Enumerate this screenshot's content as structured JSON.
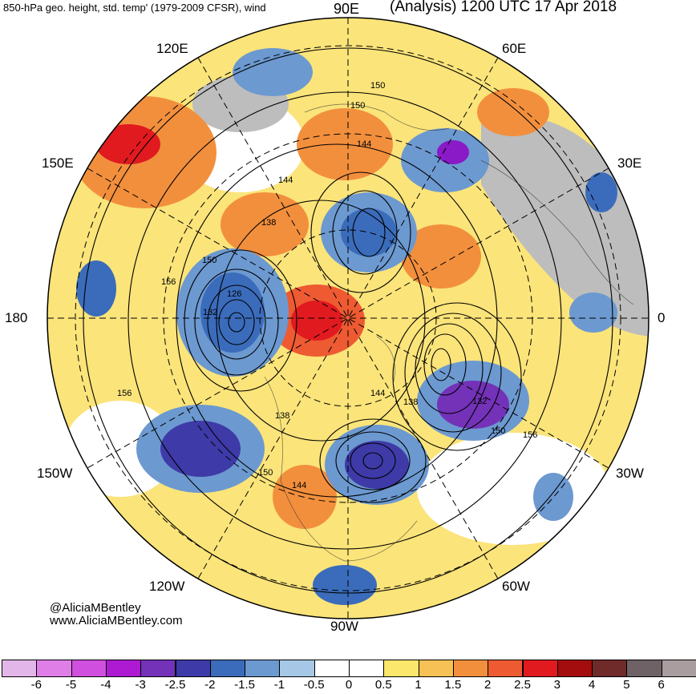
{
  "header": {
    "left_title": "850-hPa geo. height, std. temp' (1979-2009 CFSR), wind",
    "right_title": "(Analysis) 1200 UTC 17 Apr 2018"
  },
  "map": {
    "projection": "north-polar-stereographic",
    "longitude_labels": {
      "lon_90e": "90E",
      "lon_120e": "120E",
      "lon_60e": "60E",
      "lon_150e": "150E",
      "lon_30e": "30E",
      "lon_180": "180",
      "lon_0": "0",
      "lon_150w": "150W",
      "lon_30w": "30W",
      "lon_120w": "120W",
      "lon_60w": "60W",
      "lon_90w": "90W"
    },
    "contour_labels": [
      "150",
      "150",
      "144",
      "144",
      "138",
      "150",
      "156",
      "126",
      "132",
      "156",
      "138",
      "150",
      "144",
      "144",
      "138",
      "132",
      "150",
      "156"
    ],
    "anomaly_colors": {
      "strong_warm": "#d7191c",
      "warm": "#f46d43",
      "mild_warm": "#fdae61",
      "slight_warm": "#fee08b",
      "slight_cold": "#abd9e9",
      "cold": "#4575b4",
      "strong_cold": "#3f2f9f",
      "purple": "#8a19c7",
      "land_gray": "#bdbdbd"
    }
  },
  "credit": {
    "twitter": "@AliciaMBentley",
    "website": "www.AliciaMBentley.com"
  },
  "colorbar": {
    "labels": [
      "-6",
      "-5",
      "-4",
      "-3",
      "-2.5",
      "-2",
      "-1.5",
      "-1",
      "-0.5",
      "0",
      "0.5",
      "1",
      "1.5",
      "2",
      "2.5",
      "3",
      "4",
      "5",
      "6"
    ],
    "colors": [
      "#e3b6ea",
      "#e07ee8",
      "#d14fdf",
      "#ad1ad1",
      "#7332b8",
      "#3e3aa8",
      "#3b6cbb",
      "#6c99d0",
      "#a6c8e6",
      "#ffffff",
      "#ffffff",
      "#fbe76c",
      "#f7c155",
      "#f28f3d",
      "#ee5a32",
      "#e11a1f",
      "#a30d0d",
      "#6f2a2a",
      "#6e6266",
      "#a99d9f"
    ]
  }
}
